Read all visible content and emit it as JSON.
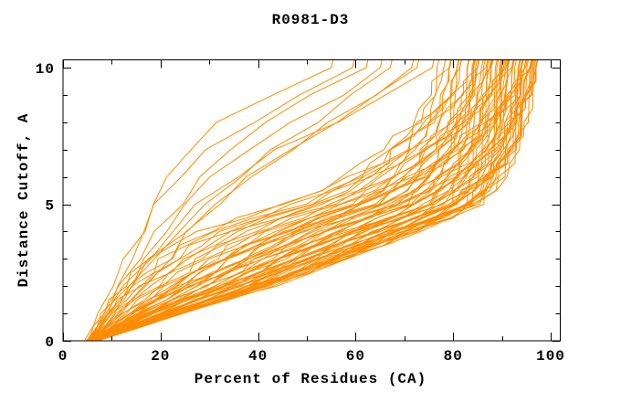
{
  "chart_data": {
    "type": "line",
    "title": "R0981-D3",
    "x_axis": {
      "label": "Percent of Residues (CA)",
      "range": [
        0,
        102
      ],
      "major_ticks": [
        {
          "v": 0,
          "label": "0"
        },
        {
          "v": 20,
          "label": "20"
        },
        {
          "v": 40,
          "label": "40"
        },
        {
          "v": 60,
          "label": "60"
        },
        {
          "v": 80,
          "label": "80"
        },
        {
          "v": 100,
          "label": "100"
        }
      ],
      "minor_ticks": [
        10,
        30,
        50,
        70,
        90
      ]
    },
    "y_axis": {
      "label": "Distance Cutoff, A",
      "range": [
        0,
        10.28
      ],
      "major_ticks": [
        {
          "v": 0,
          "label": "0"
        },
        {
          "v": 5,
          "label": "5"
        },
        {
          "v": 10,
          "label": "10"
        }
      ],
      "minor_ticks": [
        1,
        2,
        3,
        4,
        6,
        7,
        8,
        9
      ]
    },
    "curve_color": "#ff8c00",
    "axis_color": "#000000",
    "background": "#ffffff",
    "cutoffs": [
      0,
      0.5,
      1,
      1.5,
      2,
      2.5,
      3,
      3.5,
      4,
      4.5,
      5,
      5.5,
      6,
      6.5,
      7,
      7.5,
      8,
      8.5,
      9,
      9.5,
      10
    ],
    "band": {
      "fast_envelope": [
        6,
        15,
        24,
        33,
        42,
        50,
        57.5,
        65,
        72,
        79,
        85,
        87.5,
        89.5,
        91,
        92,
        93,
        93.7,
        94.3,
        95,
        95.5,
        96
      ],
      "slow_envelope": [
        4.5,
        6.5,
        8.5,
        11,
        14,
        17.5,
        21,
        25,
        30.5,
        38,
        47,
        54,
        59.5,
        64,
        67.5,
        70.5,
        73,
        74.8,
        76.2,
        77.2,
        78
      ],
      "t_values": [
        -0.06,
        -0.02,
        0.02,
        0.05,
        0.08,
        0.11,
        0.14,
        0.17,
        0.2,
        0.23,
        0.26,
        0.29,
        0.31,
        0.33,
        0.35,
        0.37,
        0.39,
        0.41,
        0.43,
        0.45,
        0.47,
        0.49,
        0.51,
        0.53,
        0.55,
        0.57,
        0.59,
        0.61,
        0.63,
        0.64,
        0.66,
        0.68,
        0.69,
        0.71,
        0.72,
        0.74,
        0.75,
        0.77,
        0.78,
        0.8,
        0.81,
        0.83,
        0.84,
        0.86,
        0.87,
        0.88,
        0.9,
        0.91,
        0.92,
        0.93,
        0.94,
        0.95,
        0.96,
        0.97,
        0.98,
        0.99,
        1.0,
        1.01,
        0.34,
        0.44,
        0.54,
        0.62,
        0.7,
        0.76,
        0.82,
        0.89,
        0.93,
        0.97
      ],
      "jitter_pct": 1.6,
      "start_spread": 1.2
    },
    "stragglers": {
      "cutoffs": [
        0,
        1,
        2,
        3,
        4,
        5,
        6,
        7,
        8,
        9,
        10
      ],
      "series": [
        [
          5,
          7.5,
          10,
          13,
          15.5,
          18,
          21,
          26,
          33,
          43,
          56
        ],
        [
          5,
          8,
          11,
          14,
          17,
          20,
          24,
          30,
          38,
          48,
          59
        ],
        [
          5,
          8.5,
          12,
          15.5,
          19,
          23,
          28,
          34,
          42,
          52,
          62
        ],
        [
          5.5,
          9,
          13,
          17,
          21,
          26,
          31,
          38,
          47,
          56,
          65
        ],
        [
          5.5,
          10,
          14.5,
          19,
          23.5,
          29,
          35,
          43,
          52,
          60,
          68
        ],
        [
          6,
          11,
          16,
          21,
          26,
          32,
          39,
          47,
          56,
          64,
          71
        ],
        [
          5,
          9,
          14,
          19,
          25,
          31,
          38,
          46,
          55,
          64,
          73
        ],
        [
          4.5,
          8,
          12,
          17,
          22,
          28,
          36,
          45,
          56,
          66,
          75
        ]
      ]
    }
  }
}
